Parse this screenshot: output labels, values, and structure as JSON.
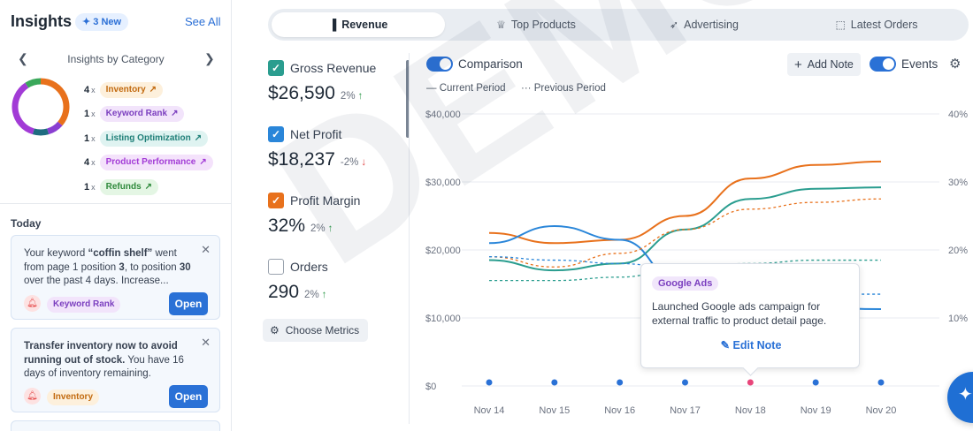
{
  "sidebar": {
    "title": "Insights",
    "new_badge": "3 New",
    "see_all": "See All",
    "category_label": "Insights by Category",
    "donut": [
      {
        "name": "Inventory",
        "value": 4,
        "color": "#e8711c"
      },
      {
        "name": "Keyword Rank",
        "value": 1,
        "color": "#8a3fd1"
      },
      {
        "name": "Listing Optimization",
        "value": 1,
        "color": "#1f6c80"
      },
      {
        "name": "Product Performance",
        "value": 4,
        "color": "#a23bd6"
      },
      {
        "name": "Refunds",
        "value": 1,
        "color": "#3aa85a"
      }
    ],
    "insights": [
      {
        "count": "4",
        "x": "x",
        "label": "Inventory",
        "bg": "#fdf0dc",
        "fg": "#c26a0f"
      },
      {
        "count": "1",
        "x": "x",
        "label": "Keyword Rank",
        "bg": "#f2e4fb",
        "fg": "#7b3fbf"
      },
      {
        "count": "1",
        "x": "x",
        "label": "Listing Optimization",
        "bg": "#dff3f1",
        "fg": "#1f7f78"
      },
      {
        "count": "4",
        "x": "x",
        "label": "Product Performance",
        "bg": "#f4e2fb",
        "fg": "#a23bd6"
      },
      {
        "count": "1",
        "x": "x",
        "label": "Refunds",
        "bg": "#e4f6e4",
        "fg": "#2f8a3c"
      }
    ],
    "today_label": "Today",
    "cards": [
      {
        "parts": [
          [
            "Your keyword ",
            false
          ],
          [
            "“coffin shelf”",
            true
          ],
          [
            " went from page 1 position ",
            false
          ],
          [
            "3",
            true
          ],
          [
            ", to position ",
            false
          ],
          [
            "30",
            true
          ],
          [
            " over the past 4 days. Increase...",
            false
          ]
        ],
        "tag": "Keyword Rank",
        "tag_bg": "#f2e4fb",
        "tag_fg": "#7b3fbf",
        "open": "Open"
      },
      {
        "parts": [
          [
            "Transfer inventory now to avoid running out of stock.",
            true
          ],
          [
            " You have 16 days of inventory remaining.",
            false
          ]
        ],
        "tag": "Inventory",
        "tag_bg": "#fdf0dc",
        "tag_fg": "#c26a0f",
        "open": "Open"
      }
    ]
  },
  "tabs": [
    {
      "label": "Revenue",
      "icon": "bar-chart-icon",
      "glyph": "▐"
    },
    {
      "label": "Top Products",
      "icon": "trophy-icon",
      "glyph": "♕"
    },
    {
      "label": "Advertising",
      "icon": "rocket-icon",
      "glyph": "➶"
    },
    {
      "label": "Latest Orders",
      "icon": "cart-icon",
      "glyph": "⬚"
    }
  ],
  "metrics": [
    {
      "label": "Gross Revenue",
      "value": "$26,590",
      "change": "2%",
      "dir": "↑",
      "dir_color": "#2f9a4b",
      "checked": true,
      "color": "#2a9d8f"
    },
    {
      "label": "Net Profit",
      "value": "$18,237",
      "change": "-2%",
      "dir": "↓",
      "dir_color": "#e04646",
      "checked": true,
      "color": "#2a86d9"
    },
    {
      "label": "Profit Margin",
      "value": "32%",
      "change": "2%",
      "dir": "↑",
      "dir_color": "#2f9a4b",
      "checked": true,
      "color": "#e8711c"
    },
    {
      "label": "Orders",
      "value": "290",
      "change": "2%",
      "dir": "↑",
      "dir_color": "#2f9a4b",
      "checked": false,
      "color": "#ffffff"
    }
  ],
  "choose_metrics": "Choose Metrics",
  "controls": {
    "comparison": "Comparison",
    "add_note": "Add Note",
    "events": "Events"
  },
  "legend": {
    "current": "Current Period",
    "previous": "Previous Period"
  },
  "tooltip": {
    "tag": "Google Ads",
    "text": "Launched Google ads campaign for external traffic to product detail page.",
    "edit": "Edit Note"
  },
  "watermark": "DEMO",
  "chart_data": {
    "type": "line",
    "categories": [
      "Nov 14",
      "Nov 15",
      "Nov 16",
      "Nov 17",
      "Nov 18",
      "Nov 19",
      "Nov 20"
    ],
    "y_left": {
      "ticks": [
        "$0",
        "$10,000",
        "$20,000",
        "$30,000",
        "$40,000"
      ],
      "min": 0,
      "max": 40000
    },
    "y_right": {
      "ticks": [
        "10%",
        "20%",
        "30%",
        "40%"
      ],
      "min": 0,
      "max": 40
    },
    "grid": true,
    "series": [
      {
        "name": "Profit Margin",
        "axis": "right",
        "style": "solid",
        "color": "#e8711c",
        "values": [
          22.5,
          21,
          21.5,
          25,
          30.5,
          32.5,
          33
        ]
      },
      {
        "name": "Gross Revenue",
        "axis": "left",
        "style": "solid",
        "color": "#2a9d8f",
        "values": [
          18500,
          17000,
          18000,
          23000,
          27500,
          29000,
          29200
        ]
      },
      {
        "name": "Net Profit",
        "axis": "left",
        "style": "solid",
        "color": "#2a86d9",
        "values": [
          21000,
          23500,
          21500,
          14500,
          11800,
          11500,
          11300
        ]
      },
      {
        "name": "Profit Margin",
        "axis": "right",
        "style": "dotted",
        "color": "#e8711c",
        "values": [
          19,
          17.5,
          19.5,
          23,
          26,
          27,
          27.5
        ]
      },
      {
        "name": "Gross Revenue",
        "axis": "left",
        "style": "dotted",
        "color": "#2a9d8f",
        "values": [
          15500,
          15500,
          16000,
          17500,
          18000,
          18500,
          18500
        ]
      },
      {
        "name": "Net Profit",
        "axis": "left",
        "style": "dotted",
        "color": "#2a86d9",
        "values": [
          19000,
          18500,
          18000,
          17000,
          14500,
          13500,
          13500
        ]
      }
    ],
    "events": [
      {
        "category": "Nov 14"
      },
      {
        "category": "Nov 15"
      },
      {
        "category": "Nov 16"
      },
      {
        "category": "Nov 17"
      },
      {
        "category": "Nov 18",
        "highlight": true
      },
      {
        "category": "Nov 19"
      },
      {
        "category": "Nov 20"
      }
    ]
  }
}
